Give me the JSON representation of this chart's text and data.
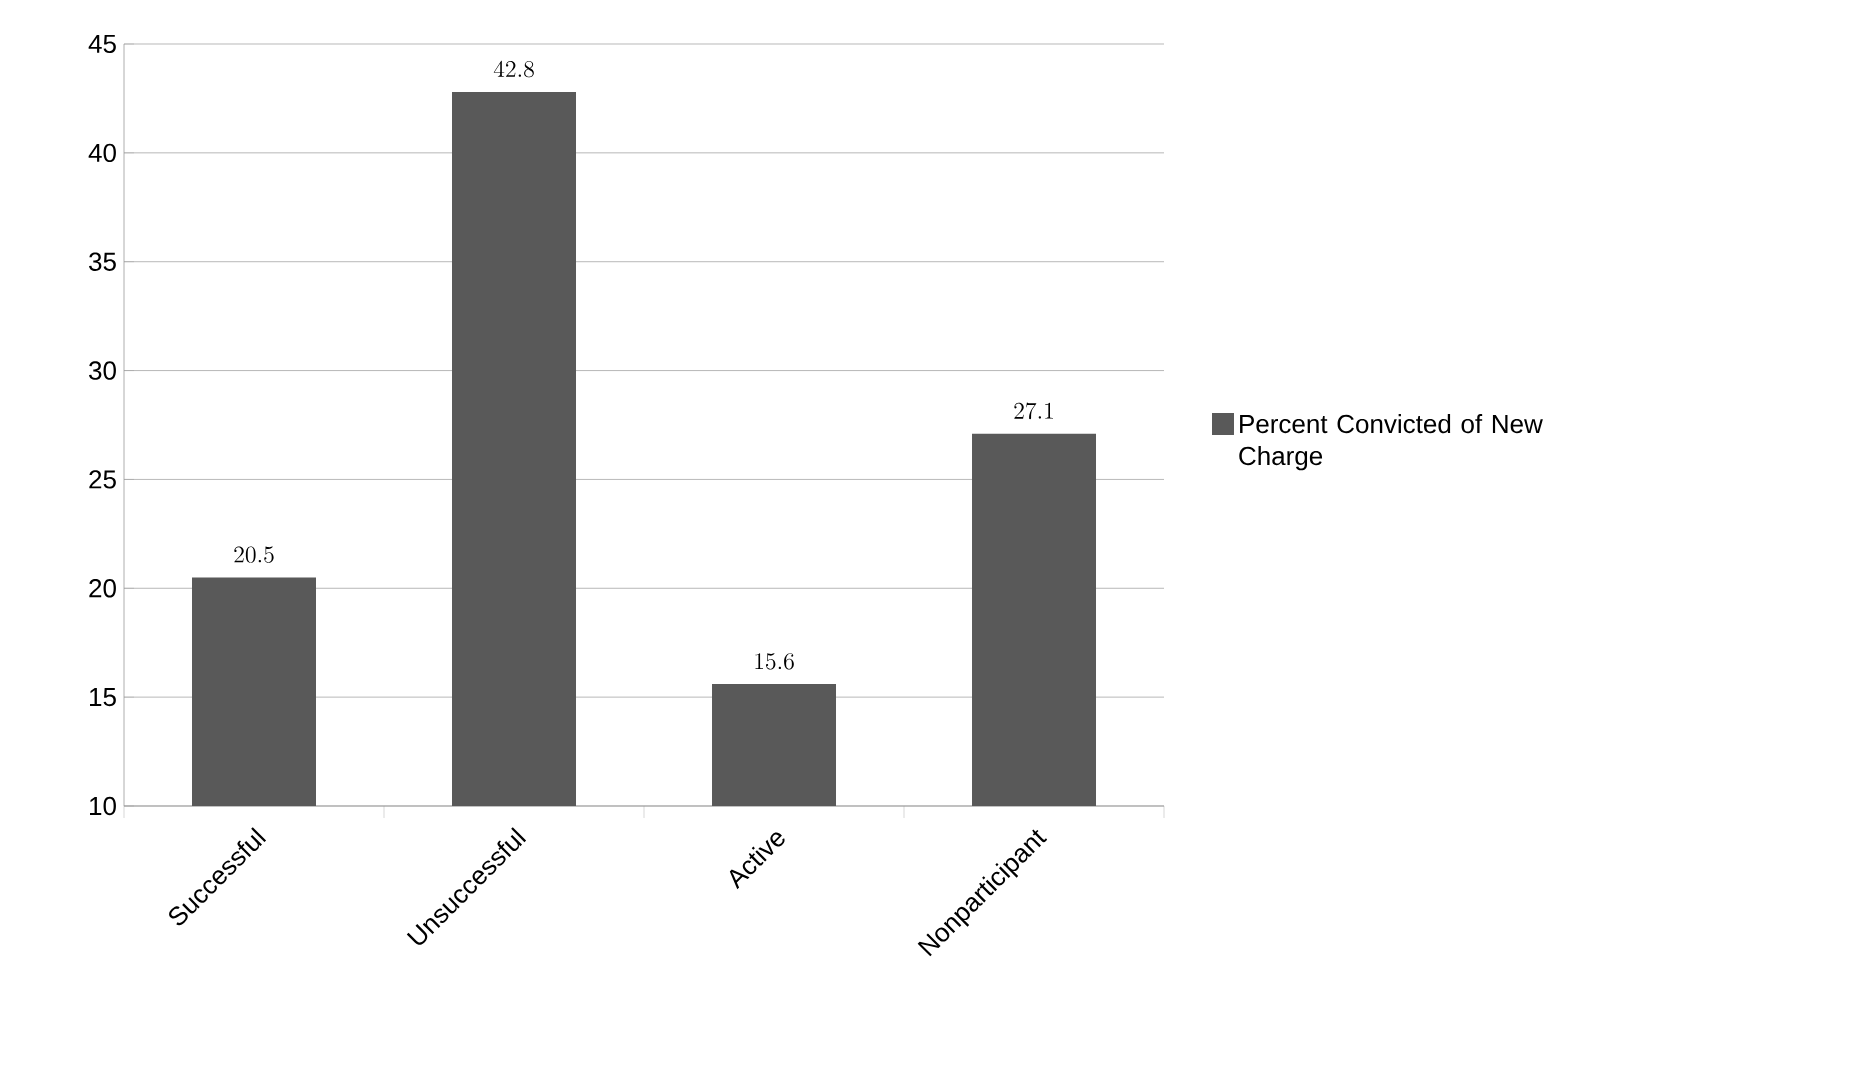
{
  "chart_data": {
    "type": "bar",
    "categories": [
      "Successful",
      "Unsuccessful",
      "Active",
      "Nonparticipant"
    ],
    "series": [
      {
        "name": "Percent Convicted of New Charge",
        "color": "#595959",
        "values": [
          20.5,
          42.8,
          15.6,
          27.1
        ]
      }
    ],
    "ylim": [
      10,
      45
    ],
    "yticks": [
      10,
      15,
      20,
      25,
      30,
      35,
      40,
      45
    ],
    "grid": "y",
    "legend": "right",
    "data_labels": true
  }
}
